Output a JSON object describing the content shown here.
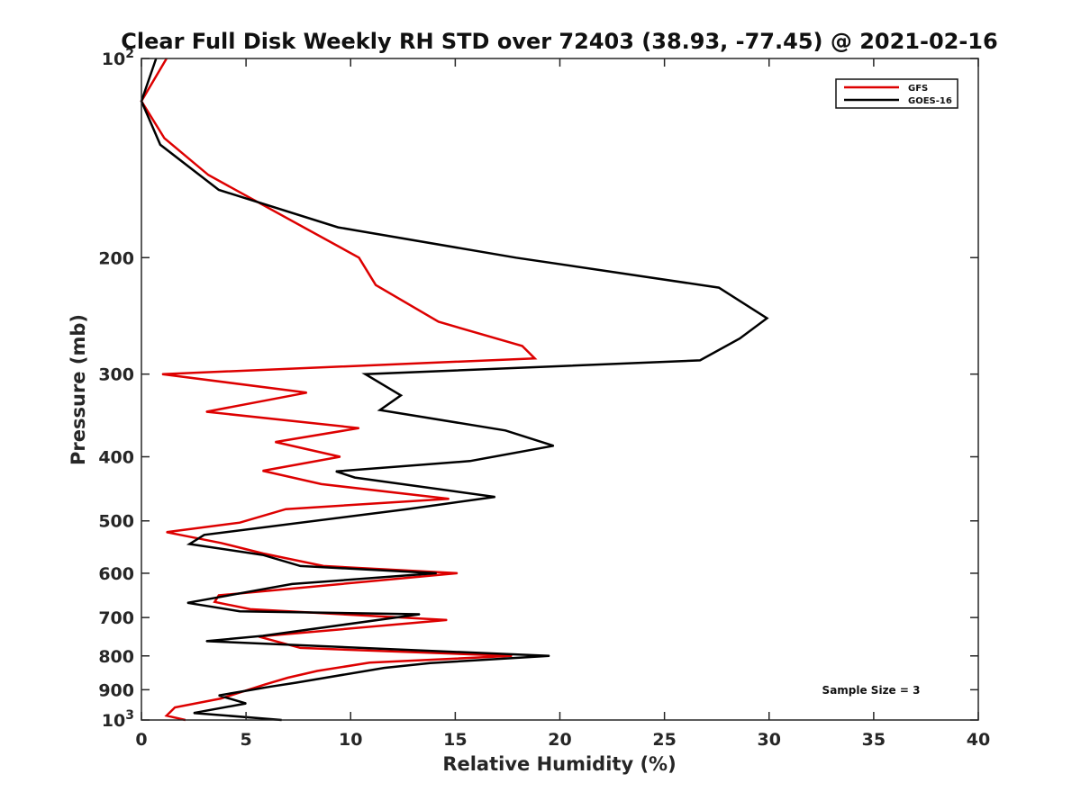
{
  "chart_data": {
    "type": "line",
    "title": "Clear Full Disk Weekly RH STD over 72403 (38.93, -77.45) @ 2021-02-16",
    "xlabel": "Relative Humidity (%)",
    "ylabel": "Pressure (mb)",
    "xlim": [
      0,
      40
    ],
    "ylim": [
      100,
      1000
    ],
    "yscale": "log",
    "y_reversed": true,
    "grid": false,
    "legend_position": "top-right",
    "x_ticks": [
      "0",
      "5",
      "10",
      "15",
      "20",
      "25",
      "30",
      "35",
      "40"
    ],
    "y_ticks": [
      {
        "value": 100,
        "label": "10",
        "exp": "2"
      },
      {
        "value": 200,
        "label": "200"
      },
      {
        "value": 300,
        "label": "300"
      },
      {
        "value": 400,
        "label": "400"
      },
      {
        "value": 500,
        "label": "500"
      },
      {
        "value": 600,
        "label": "600"
      },
      {
        "value": 700,
        "label": "700"
      },
      {
        "value": 800,
        "label": "800"
      },
      {
        "value": 900,
        "label": "900"
      },
      {
        "value": 1000,
        "label": "10",
        "exp": "3"
      }
    ],
    "annotation": "Sample Size = 3",
    "series": [
      {
        "name": "GFS",
        "color": "#dd0000",
        "points": [
          [
            1.2,
            100
          ],
          [
            0.0,
            116
          ],
          [
            1.1,
            132
          ],
          [
            3.2,
            150
          ],
          [
            10.4,
            200
          ],
          [
            11.2,
            220
          ],
          [
            14.2,
            250
          ],
          [
            18.2,
            272
          ],
          [
            18.8,
            284
          ],
          [
            1.0,
            300
          ],
          [
            7.9,
            320
          ],
          [
            3.1,
            342
          ],
          [
            10.4,
            362
          ],
          [
            6.4,
            380
          ],
          [
            9.5,
            400
          ],
          [
            5.8,
            420
          ],
          [
            8.6,
            440
          ],
          [
            14.7,
            463
          ],
          [
            6.9,
            480
          ],
          [
            4.7,
            503
          ],
          [
            1.2,
            520
          ],
          [
            3.8,
            540
          ],
          [
            5.8,
            560
          ],
          [
            8.7,
            585
          ],
          [
            15.1,
            600
          ],
          [
            3.7,
            648
          ],
          [
            3.5,
            663
          ],
          [
            5.2,
            680
          ],
          [
            14.6,
            706
          ],
          [
            5.6,
            748
          ],
          [
            7.6,
            778
          ],
          [
            17.7,
            800
          ],
          [
            10.9,
            819
          ],
          [
            8.4,
            843
          ],
          [
            7.0,
            863
          ],
          [
            5.9,
            884
          ],
          [
            3.8,
            928
          ],
          [
            1.6,
            957
          ],
          [
            1.2,
            985
          ],
          [
            2.1,
            1000
          ]
        ]
      },
      {
        "name": "GOES-16",
        "color": "#000000",
        "points": [
          [
            0.7,
            100
          ],
          [
            0.0,
            116
          ],
          [
            0.9,
            135
          ],
          [
            3.7,
            158
          ],
          [
            9.4,
            180
          ],
          [
            17.9,
            200
          ],
          [
            27.6,
            222
          ],
          [
            29.9,
            247
          ],
          [
            28.6,
            265
          ],
          [
            26.7,
            286
          ],
          [
            10.7,
            300
          ],
          [
            12.4,
            323
          ],
          [
            11.4,
            340
          ],
          [
            17.4,
            365
          ],
          [
            19.7,
            385
          ],
          [
            15.7,
            406
          ],
          [
            9.3,
            421
          ],
          [
            10.2,
            430
          ],
          [
            16.9,
            460
          ],
          [
            12.7,
            480
          ],
          [
            3.0,
            525
          ],
          [
            2.3,
            542
          ],
          [
            5.8,
            563
          ],
          [
            7.6,
            585
          ],
          [
            14.1,
            600
          ],
          [
            7.2,
            623
          ],
          [
            2.2,
            665
          ],
          [
            4.7,
            685
          ],
          [
            13.3,
            692
          ],
          [
            5.8,
            746
          ],
          [
            3.1,
            760
          ],
          [
            19.5,
            800
          ],
          [
            13.8,
            820
          ],
          [
            11.6,
            834
          ],
          [
            7.4,
            878
          ],
          [
            6.2,
            890
          ],
          [
            3.7,
            918
          ],
          [
            5.0,
            944
          ],
          [
            2.5,
            976
          ],
          [
            6.7,
            1000
          ]
        ]
      }
    ]
  }
}
